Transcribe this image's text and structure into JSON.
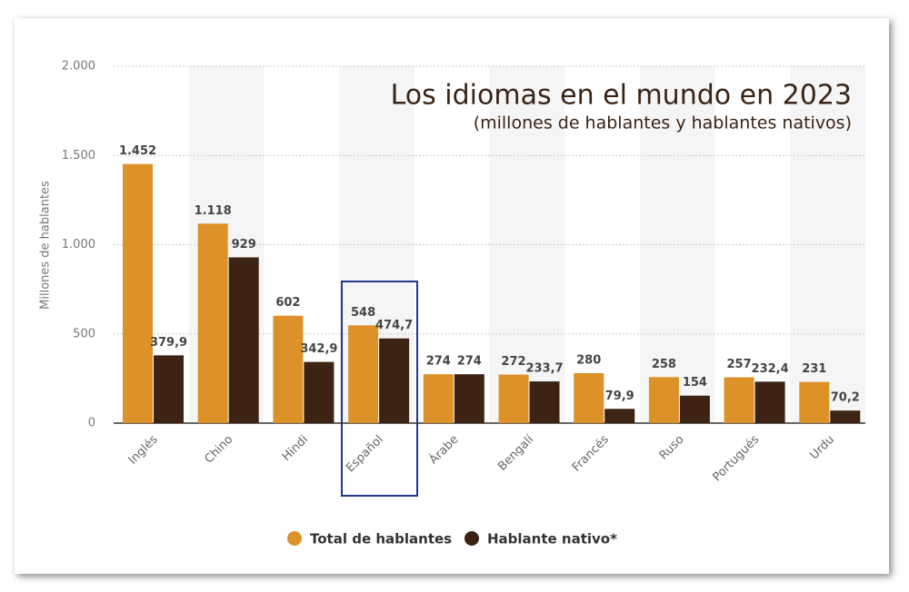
{
  "chart_data": {
    "type": "bar",
    "title": "Los idiomas en el mundo en 2023",
    "subtitle": "(millones de hablantes y hablantes nativos)",
    "y_axis_label": "Millones de hablantes",
    "categories": [
      "Inglés",
      "Chino",
      "Hindi",
      "Español",
      "Árabe",
      "Bengalí",
      "Francés",
      "Ruso",
      "Portugués",
      "Urdu"
    ],
    "series": [
      {
        "name": "Total de hablantes",
        "color": "#dd9129",
        "values": [
          1452,
          1118,
          602,
          548,
          274,
          272,
          280,
          258,
          257,
          231
        ],
        "value_labels": [
          "1.452",
          "1.118",
          "602",
          "548",
          "274",
          "272",
          "280",
          "258",
          "257",
          "231"
        ]
      },
      {
        "name": "Hablante nativo*",
        "color": "#3d2314",
        "values": [
          379.9,
          929,
          342.9,
          474.7,
          274,
          233.7,
          79.9,
          154,
          232.4,
          70.2
        ],
        "value_labels": [
          "379,9",
          "929",
          "342,9",
          "474,7",
          "274",
          "233,7",
          "79,9",
          "154",
          "232,4",
          "70,2"
        ]
      }
    ],
    "ylim": [
      0,
      2000
    ],
    "yticks": [
      0,
      500,
      {
        "value": 1000,
        "label": "1.000"
      },
      {
        "value": 1500,
        "label": "1.500"
      },
      {
        "value": 2000,
        "label": "2.000"
      }
    ],
    "grid": true,
    "legend": "bottom"
  }
}
